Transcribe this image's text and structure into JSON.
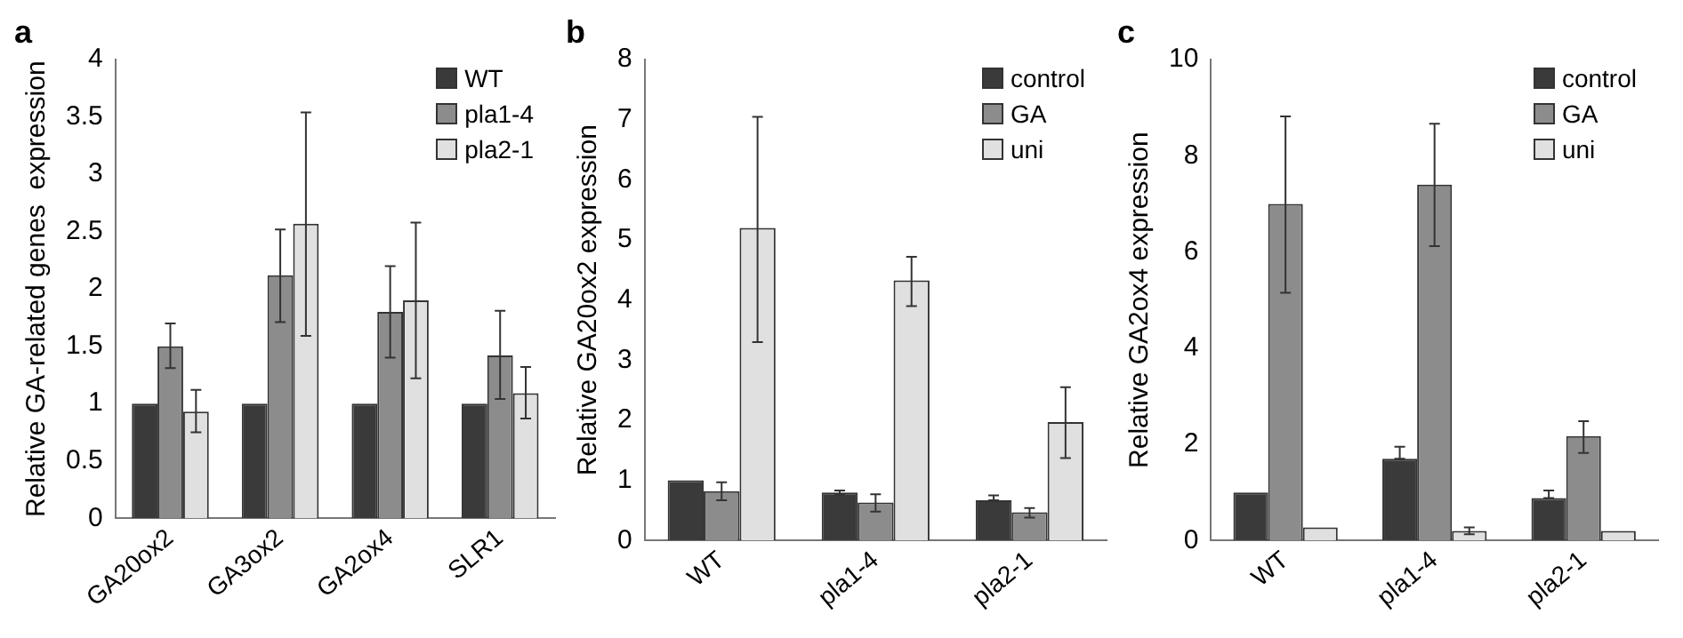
{
  "chart_data": [
    {
      "type": "bar",
      "title": "a",
      "ylabel": "Relative GA-related genes  expression",
      "categories": [
        "GA20ox2",
        "GA3ox2",
        "GA2ox4",
        "SLR1"
      ],
      "series": [
        {
          "name": "WT",
          "color": "#3a3a3a",
          "values": [
            1,
            1,
            1,
            1
          ]
        },
        {
          "name": "pla1-4",
          "color": "#8c8c8c",
          "values": [
            1.5,
            2.12,
            1.8,
            1.42
          ],
          "errors": [
            [
              1.31,
              1.7
            ],
            [
              1.71,
              2.52
            ],
            [
              1.4,
              2.2
            ],
            [
              1.04,
              1.81
            ]
          ]
        },
        {
          "name": "pla2-1",
          "color": "#e0e0e0",
          "values": [
            0.93,
            2.57,
            1.9,
            1.09
          ],
          "errors": [
            [
              0.75,
              1.12
            ],
            [
              1.59,
              3.54
            ],
            [
              1.22,
              2.58
            ],
            [
              0.87,
              1.32
            ]
          ]
        }
      ],
      "ylim": [
        0,
        4
      ],
      "yticks": [
        0,
        0.5,
        1,
        1.5,
        2,
        2.5,
        3,
        3.5,
        4
      ],
      "legend": "top right",
      "grid": false
    },
    {
      "type": "bar",
      "title": "b",
      "ylabel": "Relative GA20ox2 expression",
      "categories": [
        "WT",
        "pla1-4",
        "pla2-1"
      ],
      "series": [
        {
          "name": "control",
          "color": "#3a3a3a",
          "values": [
            1,
            0.8,
            0.67
          ],
          "errors": [
            null,
            [
              0.77,
              0.83
            ],
            [
              0.67,
              0.75
            ]
          ]
        },
        {
          "name": "GA",
          "color": "#8c8c8c",
          "values": [
            0.82,
            0.63,
            0.47
          ],
          "errors": [
            [
              0.67,
              0.97
            ],
            [
              0.48,
              0.77
            ],
            [
              0.38,
              0.54
            ]
          ]
        },
        {
          "name": "uni",
          "color": "#e0e0e0",
          "values": [
            5.2,
            4.33,
            1.97
          ],
          "errors": [
            [
              3.3,
              7.05
            ],
            [
              3.9,
              4.72
            ],
            [
              1.37,
              2.55
            ]
          ]
        }
      ],
      "ylim": [
        0,
        8
      ],
      "yticks": [
        0,
        1,
        2,
        3,
        4,
        5,
        6,
        7,
        8
      ],
      "legend": "top right",
      "grid": false
    },
    {
      "type": "bar",
      "title": "c",
      "ylabel": "Relative GA2ox4 expression",
      "categories": [
        "WT",
        "pla1-4",
        "pla2-1"
      ],
      "series": [
        {
          "name": "control",
          "color": "#3a3a3a",
          "values": [
            1,
            1.7,
            0.88
          ],
          "errors": [
            null,
            [
              1.7,
              1.95
            ],
            [
              0.88,
              1.04
            ]
          ]
        },
        {
          "name": "GA",
          "color": "#8c8c8c",
          "values": [
            7,
            7.4,
            2.17
          ],
          "errors": [
            [
              5.15,
              8.82
            ],
            [
              6.12,
              8.67
            ],
            [
              1.82,
              2.48
            ]
          ]
        },
        {
          "name": "uni",
          "color": "#e0e0e0",
          "values": [
            0.27,
            0.2,
            0.2
          ],
          "errors": [
            null,
            [
              0.13,
              0.27
            ],
            null
          ]
        }
      ],
      "ylim": [
        0,
        10
      ],
      "yticks": [
        0,
        2,
        4,
        6,
        8,
        10
      ],
      "legend": "top right",
      "grid": false
    }
  ]
}
